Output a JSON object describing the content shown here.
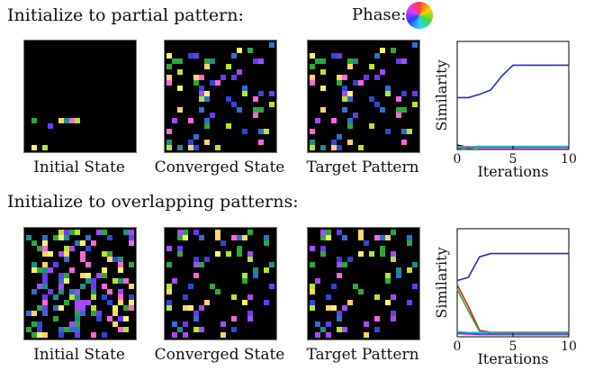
{
  "sections": [
    {
      "heading": "Initialize to partial pattern:",
      "captions": [
        "Initial State",
        "Converged State",
        "Target Pattern"
      ]
    },
    {
      "heading": "Initialize to overlapping patterns:",
      "captions": [
        "Initial State",
        "Converged State",
        "Target Pattern"
      ]
    }
  ],
  "phase_legend": {
    "label": "Phase:",
    "icon": "phase-color-wheel-icon"
  },
  "palette": [
    "#ff66d9",
    "#ffd46a",
    "#f8f56a",
    "#b6e62b",
    "#2fa83a",
    "#1f8f86",
    "#2f6fd1",
    "#6a3cf0",
    "#a34bff",
    "#2f46d6"
  ],
  "chart_data": [
    {
      "type": "line",
      "title": "",
      "xlabel": "Iterations",
      "ylabel": "Similarity",
      "xlim": [
        0,
        10
      ],
      "ylim": [
        0,
        1
      ],
      "x_ticks": [
        0,
        5,
        10
      ],
      "grid": false,
      "series": [
        {
          "color": "#1f2bd6",
          "values": [
            [
              0,
              0.48
            ],
            [
              1,
              0.48
            ],
            [
              2,
              0.51
            ],
            [
              3,
              0.55
            ],
            [
              4,
              0.68
            ],
            [
              5,
              0.78
            ],
            [
              6,
              0.78
            ],
            [
              7,
              0.78
            ],
            [
              8,
              0.78
            ],
            [
              9,
              0.78
            ],
            [
              10,
              0.78
            ]
          ]
        },
        {
          "color": "#000000",
          "values": [
            [
              0,
              0.04
            ],
            [
              1,
              0.02
            ],
            [
              2,
              0.03
            ],
            [
              3,
              0.02
            ],
            [
              4,
              0.02
            ],
            [
              5,
              0.02
            ],
            [
              10,
              0.02
            ]
          ]
        },
        {
          "color": "#2fa83a",
          "values": [
            [
              0,
              0.03
            ],
            [
              1,
              0.01
            ],
            [
              2,
              0.02
            ],
            [
              3,
              0.02
            ],
            [
              10,
              0.02
            ]
          ]
        },
        {
          "color": "#ff66d9",
          "values": [
            [
              0,
              0.02
            ],
            [
              1,
              0.03
            ],
            [
              2,
              0.01
            ],
            [
              3,
              0.01
            ],
            [
              10,
              0.01
            ]
          ]
        },
        {
          "color": "#22d6ff",
          "values": [
            [
              0,
              0.02
            ],
            [
              1,
              0.02
            ],
            [
              2,
              0.03
            ],
            [
              3,
              0.03
            ],
            [
              10,
              0.03
            ]
          ]
        },
        {
          "color": "#1f8f86",
          "values": [
            [
              0,
              0.01
            ],
            [
              1,
              0.02
            ],
            [
              2,
              0.02
            ],
            [
              10,
              0.02
            ]
          ]
        }
      ]
    },
    {
      "type": "line",
      "title": "",
      "xlabel": "Iterations",
      "ylabel": "Similarity",
      "xlim": [
        0,
        10
      ],
      "ylim": [
        0,
        1
      ],
      "x_ticks": [
        0,
        5,
        10
      ],
      "grid": false,
      "series": [
        {
          "color": "#1f2bd6",
          "values": [
            [
              0,
              0.52
            ],
            [
              1,
              0.55
            ],
            [
              2,
              0.74
            ],
            [
              3,
              0.77
            ],
            [
              4,
              0.77
            ],
            [
              5,
              0.77
            ],
            [
              10,
              0.77
            ]
          ]
        },
        {
          "color": "#d42020",
          "values": [
            [
              0,
              0.48
            ],
            [
              1,
              0.28
            ],
            [
              2,
              0.06
            ],
            [
              3,
              0.04
            ],
            [
              4,
              0.04
            ],
            [
              10,
              0.04
            ]
          ]
        },
        {
          "color": "#2fa83a",
          "values": [
            [
              0,
              0.44
            ],
            [
              1,
              0.24
            ],
            [
              2,
              0.05
            ],
            [
              3,
              0.04
            ],
            [
              10,
              0.04
            ]
          ]
        },
        {
          "color": "#22d6ff",
          "values": [
            [
              0,
              0.05
            ],
            [
              1,
              0.04
            ],
            [
              2,
              0.04
            ],
            [
              3,
              0.03
            ],
            [
              10,
              0.03
            ]
          ]
        },
        {
          "color": "#1f8f86",
          "values": [
            [
              0,
              0.04
            ],
            [
              1,
              0.03
            ],
            [
              2,
              0.03
            ],
            [
              10,
              0.03
            ]
          ]
        },
        {
          "color": "#ff66d9",
          "values": [
            [
              0,
              0.03
            ],
            [
              1,
              0.02
            ],
            [
              2,
              0.02
            ],
            [
              10,
              0.02
            ]
          ]
        },
        {
          "color": "#6a3cf0",
          "values": [
            [
              0,
              0.03
            ],
            [
              1,
              0.03
            ],
            [
              2,
              0.02
            ],
            [
              10,
              0.02
            ]
          ]
        }
      ]
    }
  ]
}
